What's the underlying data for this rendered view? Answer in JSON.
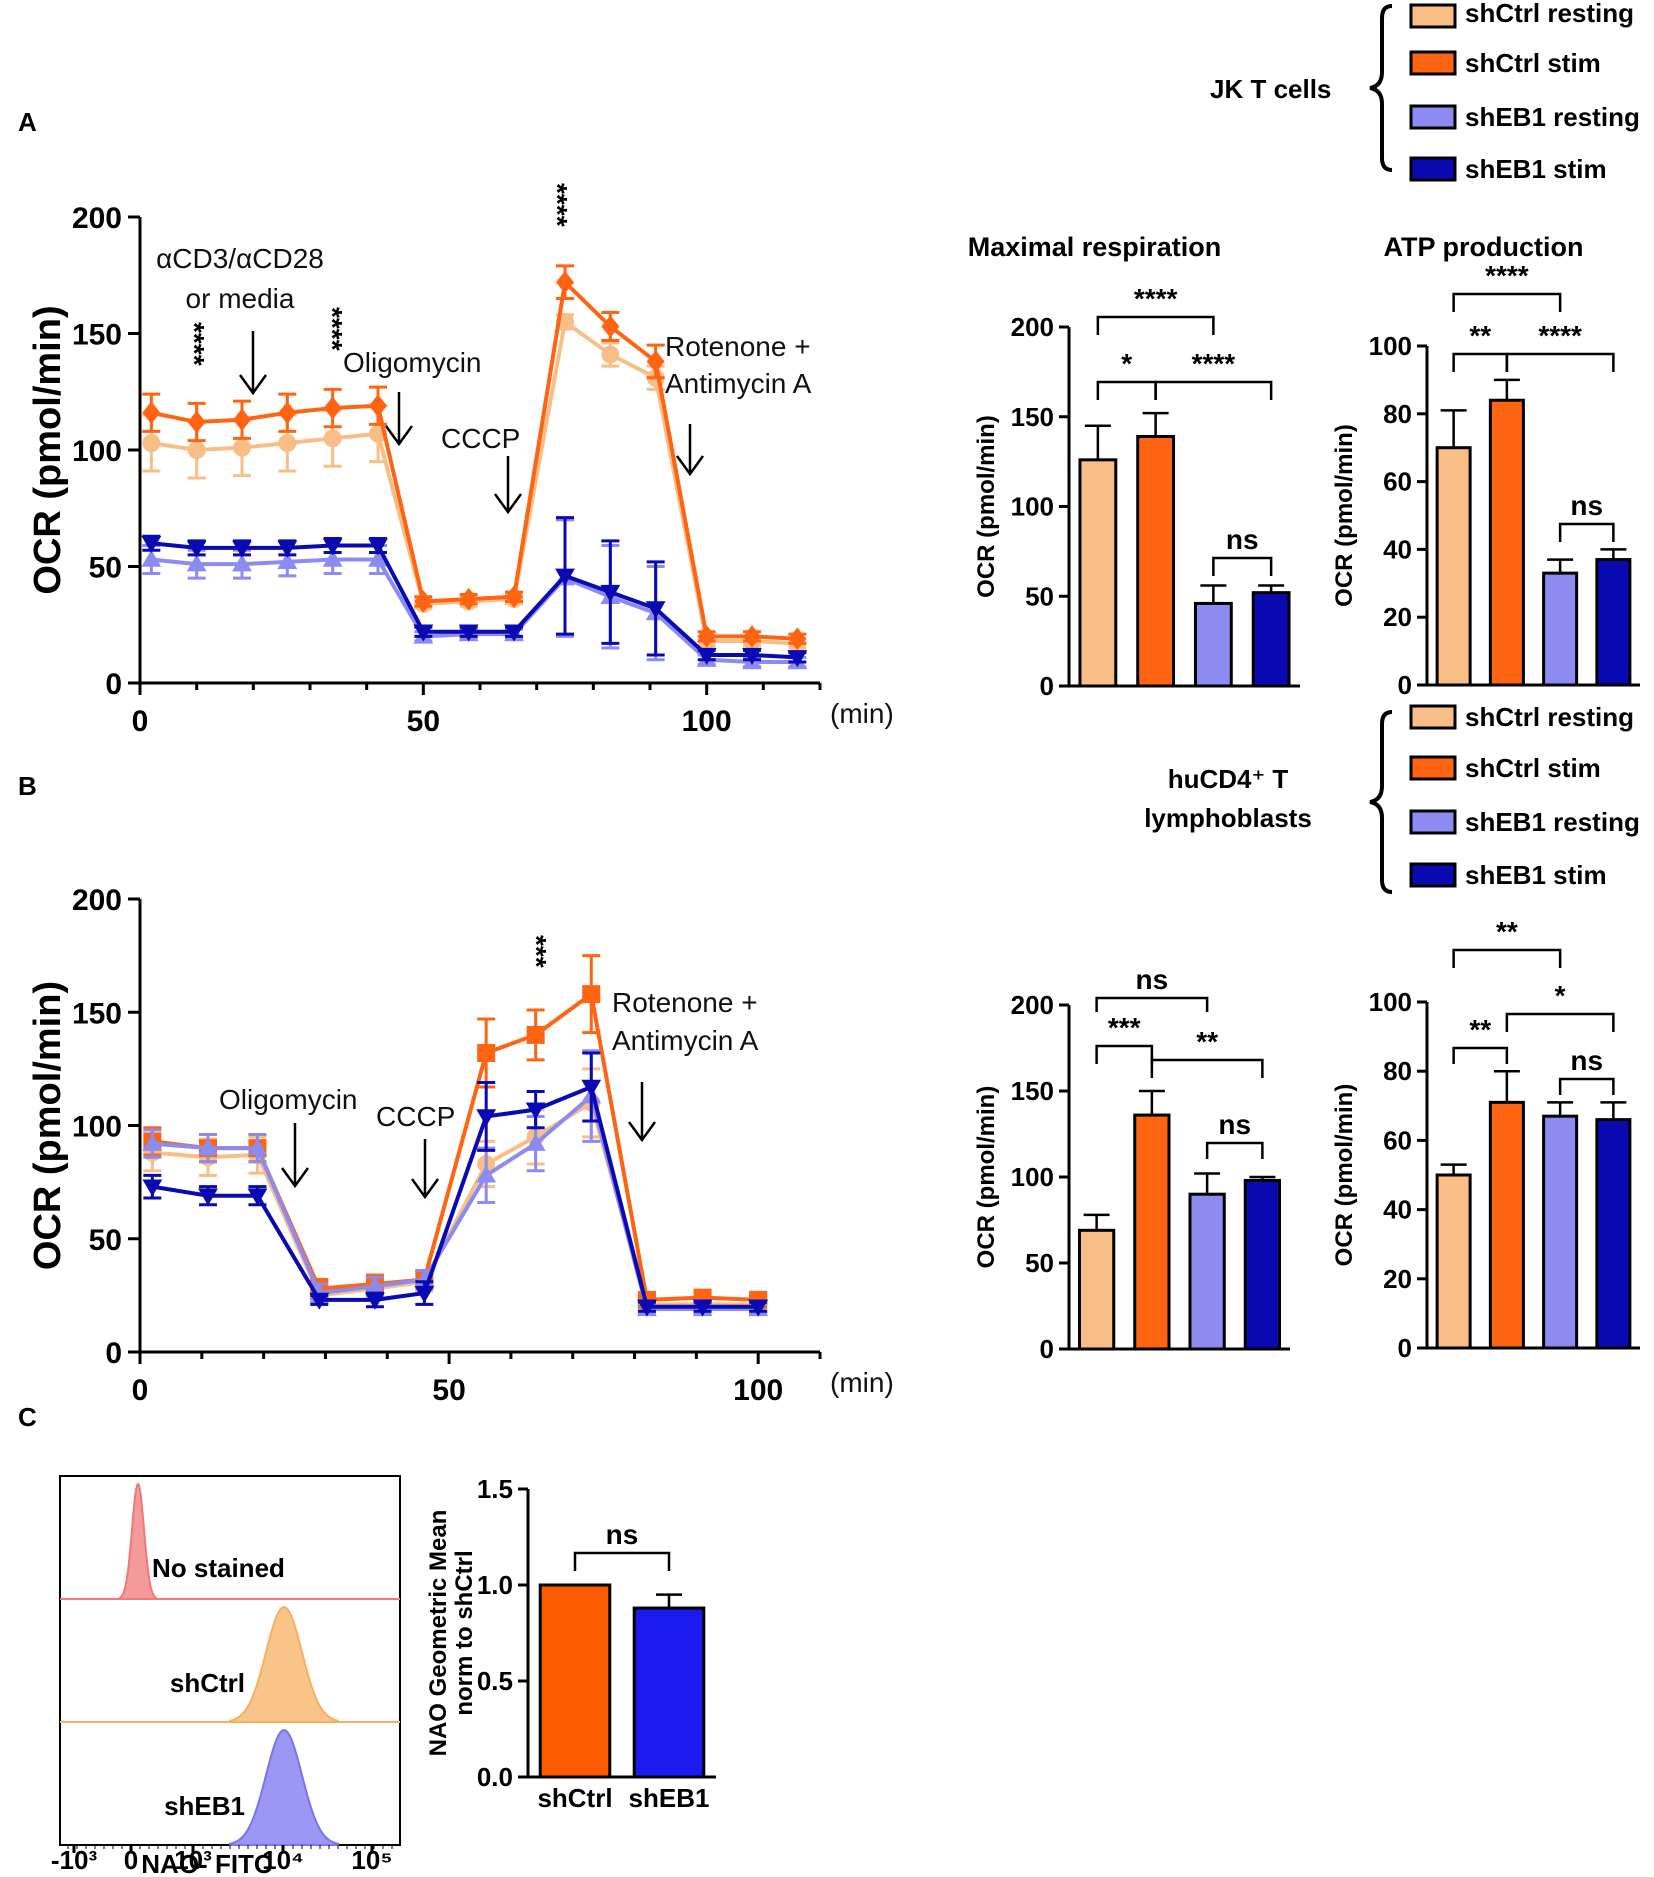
{
  "panel_labels": {
    "A": "A",
    "B": "B",
    "C": "C"
  },
  "legend_A": {
    "group": "JK T cells",
    "items": [
      {
        "label": "shCtrl resting",
        "color": "#f9be86"
      },
      {
        "label": "shCtrl stim",
        "color": "#fe6412"
      },
      {
        "label": "shEB1 resting",
        "color": "#8b8bf2"
      },
      {
        "label": "shEB1 stim",
        "color": "#0a0ab3"
      }
    ]
  },
  "legend_B": {
    "group_line1": "huCD4⁺ T",
    "group_line2": "lymphoblasts",
    "items": [
      {
        "label": "shCtrl resting",
        "color": "#f9be86"
      },
      {
        "label": "shCtrl stim",
        "color": "#fe6412"
      },
      {
        "label": "shEB1 resting",
        "color": "#8b8bf2"
      },
      {
        "label": "shEB1 stim",
        "color": "#0a0ab3"
      }
    ]
  },
  "chart_data": [
    {
      "id": "A-time",
      "type": "line",
      "title": "",
      "xlabel": "(min)",
      "ylabel": "OCR (pmol/min)",
      "xlim": [
        0,
        120
      ],
      "ylim": [
        0,
        200
      ],
      "x_ticks": [
        0,
        50,
        100
      ],
      "y_ticks": [
        0,
        50,
        100,
        150,
        200
      ],
      "x": [
        2,
        10,
        18,
        26,
        34,
        42,
        50,
        58,
        66,
        75,
        83,
        91,
        100,
        108,
        116
      ],
      "series": [
        {
          "name": "shCtrl resting",
          "color": "#f9be86",
          "marker": "circle",
          "values": [
            103,
            100,
            101,
            103,
            105,
            107,
            34,
            35,
            36,
            155,
            141,
            131,
            18,
            18,
            17
          ],
          "errors": [
            12,
            12,
            12,
            12,
            12,
            12,
            2,
            2,
            2,
            3,
            5,
            5,
            2,
            2,
            2
          ]
        },
        {
          "name": "shCtrl stim",
          "color": "#fe6412",
          "marker": "diamond",
          "values": [
            116,
            112,
            113,
            116,
            118,
            119,
            35,
            36,
            37,
            172,
            153,
            138,
            20,
            20,
            19
          ],
          "errors": [
            8,
            8,
            8,
            8,
            8,
            8,
            2,
            2,
            2,
            7,
            6,
            7,
            2,
            2,
            2
          ]
        },
        {
          "name": "shEB1 resting",
          "color": "#8b8bf2",
          "marker": "triangle-up",
          "values": [
            53,
            51,
            51,
            52,
            53,
            53,
            20,
            21,
            21,
            45,
            37,
            30,
            10,
            9,
            9
          ],
          "errors": [
            6,
            6,
            6,
            6,
            6,
            6,
            2,
            2,
            2,
            25,
            22,
            20,
            2,
            2,
            2
          ]
        },
        {
          "name": "shEB1 stim",
          "color": "#0a0ab3",
          "marker": "triangle-down",
          "values": [
            60,
            58,
            58,
            58,
            59,
            59,
            22,
            22,
            22,
            46,
            39,
            32,
            12,
            12,
            11
          ],
          "errors": [
            3,
            3,
            3,
            3,
            3,
            3,
            2,
            2,
            2,
            25,
            22,
            20,
            2,
            2,
            2
          ]
        }
      ],
      "annotations": {
        "stim": [
          "αCD3/αCD28",
          "or media"
        ],
        "oligo": "Oligomycin",
        "cccp": "CCCP",
        "rot": [
          "Rotenone +",
          "Antimycin A"
        ],
        "sig1": "****",
        "sig2": "****",
        "sig3": "****"
      }
    },
    {
      "id": "A-max",
      "type": "bar",
      "title": "Maximal respiration",
      "ylabel": "OCR (pmol/min)",
      "ylim": [
        0,
        200
      ],
      "y_ticks": [
        0,
        50,
        100,
        150,
        200
      ],
      "categories": [
        "shCtrl resting",
        "shCtrl stim",
        "shEB1 resting",
        "shEB1 stim"
      ],
      "values": [
        126,
        139,
        46,
        52
      ],
      "errors": [
        19,
        13,
        10,
        4
      ],
      "colors": [
        "#f9be86",
        "#fe6412",
        "#8b8bf2",
        "#0a0ab3"
      ],
      "significance": [
        {
          "a": 0,
          "b": 2,
          "label": "****"
        },
        {
          "a": 0,
          "b": 1,
          "label": "*"
        },
        {
          "a": 1,
          "b": 3,
          "label": "****"
        },
        {
          "a": 2,
          "b": 3,
          "label": "ns"
        }
      ]
    },
    {
      "id": "A-atp",
      "type": "bar",
      "title": "ATP production",
      "ylabel": "OCR (pmol/min)",
      "ylim": [
        0,
        100
      ],
      "y_ticks": [
        0,
        20,
        40,
        60,
        80,
        100
      ],
      "categories": [
        "shCtrl resting",
        "shCtrl stim",
        "shEB1 resting",
        "shEB1 stim"
      ],
      "values": [
        70,
        84,
        33,
        37
      ],
      "errors": [
        11,
        6,
        4,
        3
      ],
      "colors": [
        "#f9be86",
        "#fe6412",
        "#8b8bf2",
        "#0a0ab3"
      ],
      "significance": [
        {
          "a": 0,
          "b": 2,
          "label": "****"
        },
        {
          "a": 0,
          "b": 1,
          "label": "**"
        },
        {
          "a": 1,
          "b": 3,
          "label": "****"
        },
        {
          "a": 2,
          "b": 3,
          "label": "ns"
        }
      ]
    },
    {
      "id": "B-time",
      "type": "line",
      "title": "",
      "xlabel": "(min)",
      "ylabel": "OCR (pmol/min)",
      "xlim": [
        0,
        110
      ],
      "ylim": [
        0,
        200
      ],
      "x_ticks": [
        0,
        50,
        100
      ],
      "y_ticks": [
        0,
        50,
        100,
        150,
        200
      ],
      "x": [
        2,
        11,
        19,
        29,
        38,
        46,
        56,
        64,
        73,
        82,
        91,
        100
      ],
      "series": [
        {
          "name": "shCtrl resting",
          "color": "#f9be86",
          "marker": "circle",
          "values": [
            88,
            86,
            87,
            25,
            28,
            31,
            83,
            95,
            110,
            21,
            21,
            21
          ],
          "errors": [
            8,
            8,
            8,
            4,
            4,
            4,
            10,
            12,
            15,
            2,
            2,
            2
          ]
        },
        {
          "name": "shCtrl stim",
          "color": "#fe6412",
          "marker": "square",
          "values": [
            93,
            90,
            90,
            28,
            30,
            32,
            132,
            140,
            158,
            23,
            24,
            23
          ],
          "errors": [
            6,
            6,
            6,
            4,
            4,
            4,
            15,
            11,
            17,
            2,
            2,
            2
          ]
        },
        {
          "name": "shEB1 resting",
          "color": "#8b8bf2",
          "marker": "triangle-up",
          "values": [
            92,
            90,
            90,
            26,
            29,
            32,
            78,
            92,
            113,
            19,
            19,
            19
          ],
          "errors": [
            6,
            6,
            6,
            4,
            4,
            4,
            12,
            12,
            20,
            2,
            2,
            2
          ]
        },
        {
          "name": "shEB1 stim",
          "color": "#0a0ab3",
          "marker": "triangle-down",
          "values": [
            73,
            69,
            69,
            23,
            23,
            26,
            104,
            107,
            117,
            20,
            20,
            20
          ],
          "errors": [
            5,
            4,
            4,
            2,
            3,
            5,
            15,
            8,
            15,
            2,
            2,
            2
          ]
        }
      ],
      "annotations": {
        "oligo": "Oligomycin",
        "cccp": "CCCP",
        "rot": [
          "Rotenone +",
          "Antimycin A"
        ],
        "sig1": "***"
      }
    },
    {
      "id": "B-max",
      "type": "bar",
      "title": "",
      "ylabel": "OCR (pmol/min)",
      "ylim": [
        0,
        200
      ],
      "y_ticks": [
        0,
        50,
        100,
        150,
        200
      ],
      "categories": [
        "shCtrl resting",
        "shCtrl stim",
        "shEB1 resting",
        "shEB1 stim"
      ],
      "values": [
        69,
        136,
        90,
        98
      ],
      "errors": [
        9,
        14,
        12,
        2
      ],
      "colors": [
        "#f9be86",
        "#fe6412",
        "#8b8bf2",
        "#0a0ab3"
      ],
      "significance": [
        {
          "a": 0,
          "b": 2,
          "label": "ns"
        },
        {
          "a": 0,
          "b": 1,
          "label": "***"
        },
        {
          "a": 1,
          "b": 3,
          "label": "**"
        },
        {
          "a": 2,
          "b": 3,
          "label": "ns"
        }
      ]
    },
    {
      "id": "B-atp",
      "type": "bar",
      "title": "",
      "ylabel": "OCR (pmol/min)",
      "ylim": [
        0,
        100
      ],
      "y_ticks": [
        0,
        20,
        40,
        60,
        80,
        100
      ],
      "categories": [
        "shCtrl resting",
        "shCtrl stim",
        "shEB1 resting",
        "shEB1 stim"
      ],
      "values": [
        50,
        71,
        67,
        66
      ],
      "errors": [
        3,
        9,
        4,
        5
      ],
      "colors": [
        "#f9be86",
        "#fe6412",
        "#8b8bf2",
        "#0a0ab3"
      ],
      "significance": [
        {
          "a": 0,
          "b": 2,
          "label": "**"
        },
        {
          "a": 0,
          "b": 1,
          "label": "**"
        },
        {
          "a": 1,
          "b": 3,
          "label": "*"
        },
        {
          "a": 2,
          "b": 3,
          "label": "ns"
        }
      ]
    },
    {
      "id": "C-hist",
      "type": "histogram",
      "xlabel": "NAO- FITC",
      "x_ticks": [
        "-10³",
        "0",
        "10³",
        "10⁴",
        "10⁵"
      ],
      "tracks": [
        {
          "name": "No stained",
          "color": "#f07878",
          "peak": 0.3
        },
        {
          "name": "shCtrl",
          "color": "#f5b060",
          "peak": 3.95
        },
        {
          "name": "shEB1",
          "color": "#7a74ee",
          "peak": 4.0
        }
      ]
    },
    {
      "id": "C-bar",
      "type": "bar",
      "ylabel": [
        "NAO Geometric Mean",
        "norm to shCtrl"
      ],
      "ylim": [
        0,
        1.5
      ],
      "y_ticks": [
        "0.0",
        "0.5",
        "1.0",
        "1.5"
      ],
      "categories": [
        "shCtrl",
        "shEB1"
      ],
      "values": [
        1.0,
        0.88
      ],
      "errors": [
        0,
        0.07
      ],
      "colors": [
        "#fe5a00",
        "#1b1bf0"
      ],
      "significance": [
        {
          "a": 0,
          "b": 1,
          "label": "ns"
        }
      ]
    }
  ]
}
